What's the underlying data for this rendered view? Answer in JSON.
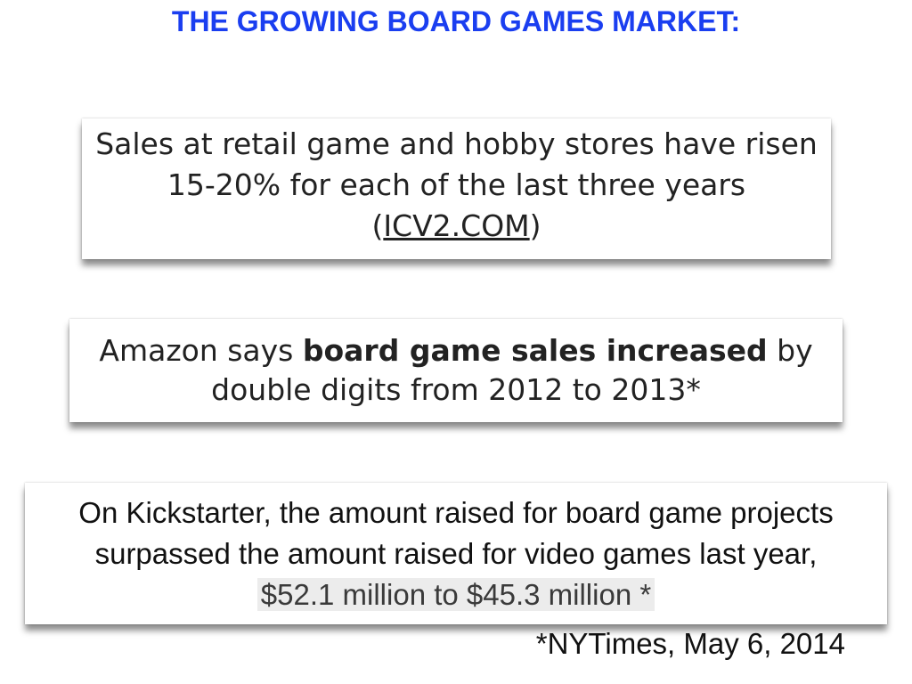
{
  "slide": {
    "title": "THE GROWING BOARD GAMES MARKET:",
    "colors": {
      "title": "#1a3ef0",
      "text": "#222222",
      "highlight_bg": "#ececec"
    }
  },
  "card1": {
    "line1": "Sales at retail game and hobby stores have risen",
    "line2": "15-20% for each of the last three years",
    "open_paren": "(",
    "link_text": "ICV2.COM",
    "close_paren": ")"
  },
  "card2": {
    "prefix": "Amazon says ",
    "bold": "board game sales increased",
    "suffix": " by",
    "line2": "double digits from 2012 to 2013*"
  },
  "card3": {
    "line1": "On Kickstarter, the amount raised for board game projects",
    "line2": "surpassed the amount raised for video games last year,",
    "highlight": "$52.1 million to $45.3 million *"
  },
  "footnote": {
    "source": "*NYTimes, May 6, 2014"
  }
}
